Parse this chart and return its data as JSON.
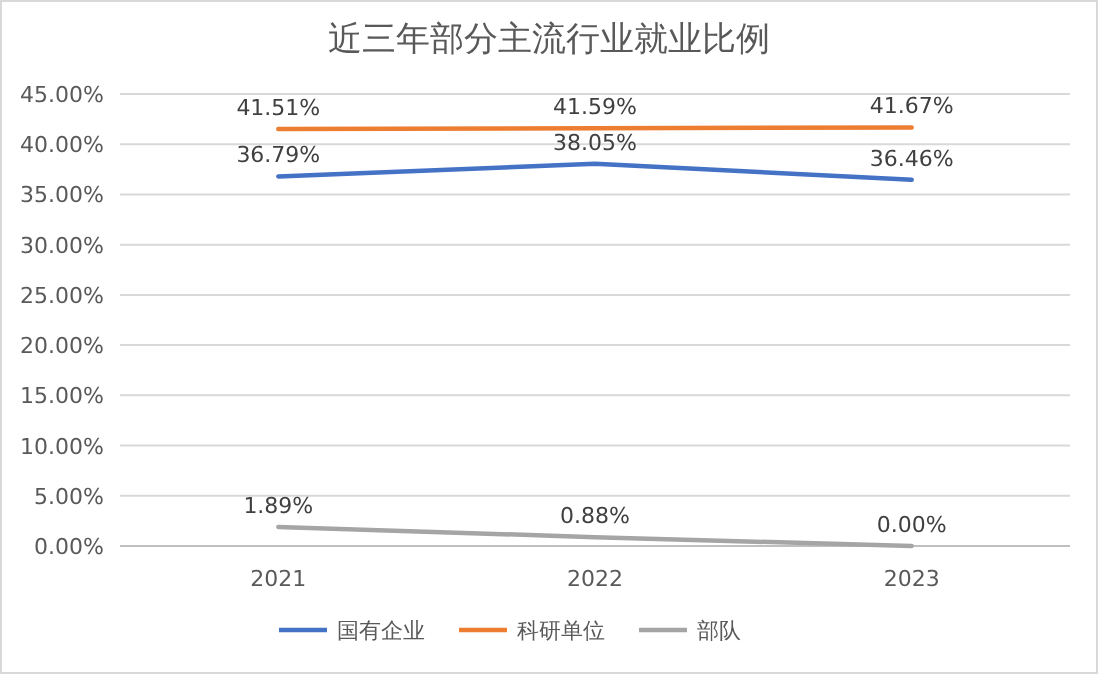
{
  "chart_data": {
    "type": "line",
    "title": "近三年部分主流行业就业比例",
    "categories": [
      "2021",
      "2022",
      "2023"
    ],
    "series": [
      {
        "name": "国有企业",
        "color": "#4472c4",
        "values": [
          36.79,
          38.05,
          36.46
        ],
        "value_labels": [
          "36.79%",
          "38.05%",
          "36.46%"
        ]
      },
      {
        "name": "科研单位",
        "color": "#ed7d31",
        "values": [
          41.51,
          41.59,
          41.67
        ],
        "value_labels": [
          "41.51%",
          "41.59%",
          "41.67%"
        ]
      },
      {
        "name": "部队",
        "color": "#a5a5a5",
        "values": [
          1.89,
          0.88,
          0
        ],
        "value_labels": [
          "1.89%",
          "0.88%",
          "0.00%"
        ]
      }
    ],
    "ylim": [
      0,
      45
    ],
    "yticks": [
      {
        "value": 0,
        "label": "0.00%"
      },
      {
        "value": 5,
        "label": "5.00%"
      },
      {
        "value": 10,
        "label": "10.00%"
      },
      {
        "value": 15,
        "label": "15.00%"
      },
      {
        "value": 20,
        "label": "20.00%"
      },
      {
        "value": 25,
        "label": "25.00%"
      },
      {
        "value": 30,
        "label": "30.00%"
      },
      {
        "value": 35,
        "label": "35.00%"
      },
      {
        "value": 40,
        "label": "40.00%"
      },
      {
        "value": 45,
        "label": "45.00%"
      }
    ],
    "grid": "y",
    "legend": "bottom",
    "marker": "none",
    "line_style": "solid"
  }
}
